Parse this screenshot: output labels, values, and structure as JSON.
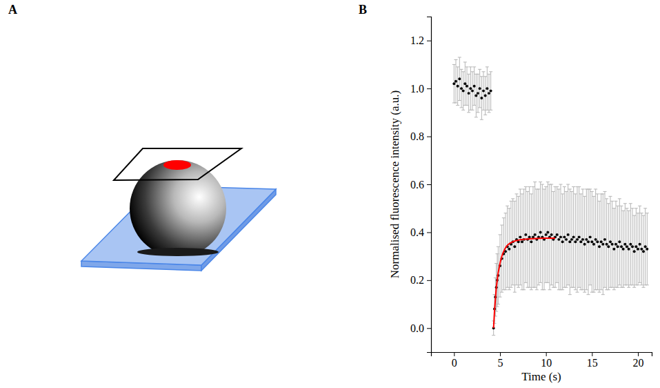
{
  "panel_labels": [
    "A",
    "B"
  ],
  "chart_data": {
    "type": "scatter",
    "x_label": "Time (s)",
    "y_label": "Normalised fluorescence intensity (a.u.)",
    "xlim": [
      -2.5,
      21.5
    ],
    "xticks": [
      0,
      5,
      10,
      15,
      20
    ],
    "ylim": [
      -0.1,
      1.3
    ],
    "yticks": [
      {
        "value": 0,
        "label": "0.0"
      },
      0.2,
      0.4,
      0.6,
      0.8,
      {
        "value": 1,
        "label": "1.0"
      },
      1.2
    ],
    "series": [
      {
        "type": "scatter",
        "color": "#000000",
        "marker": "circle",
        "x": [
          0,
          0.2,
          0.4,
          0.6,
          0.8,
          1.0,
          1.2,
          1.4,
          1.6,
          1.8,
          2.0,
          2.2,
          2.4,
          2.6,
          2.8,
          3.0,
          3.2,
          3.4,
          3.6,
          3.8,
          4.0,
          4.3,
          4.4,
          4.5,
          4.6,
          4.7,
          4.8,
          5.0,
          5.2,
          5.4,
          5.6,
          5.8,
          6.0,
          6.2,
          6.4,
          6.6,
          6.8,
          7.0,
          7.2,
          7.4,
          7.6,
          7.8,
          8.0,
          8.2,
          8.4,
          8.6,
          8.8,
          9.0,
          9.2,
          9.4,
          9.6,
          9.8,
          10.0,
          10.2,
          10.4,
          10.6,
          10.8,
          11.0,
          11.2,
          11.4,
          11.6,
          11.8,
          12.0,
          12.2,
          12.4,
          12.6,
          12.8,
          13.0,
          13.2,
          13.4,
          13.6,
          13.8,
          14.0,
          14.2,
          14.4,
          14.6,
          14.8,
          15.0,
          15.2,
          15.4,
          15.6,
          15.8,
          16.0,
          16.2,
          16.4,
          16.6,
          16.8,
          17.0,
          17.2,
          17.4,
          17.6,
          17.8,
          18.0,
          18.2,
          18.4,
          18.6,
          18.8,
          19.0,
          19.2,
          19.4,
          19.6,
          19.8,
          20.0,
          20.2,
          20.4,
          20.6,
          20.8,
          21.0
        ],
        "values": [
          1.02,
          1.03,
          1.01,
          1.04,
          1.0,
          0.99,
          1.02,
          1.01,
          0.98,
          1.0,
          0.99,
          1.01,
          0.97,
          0.98,
          1.0,
          0.96,
          0.99,
          0.97,
          1.0,
          0.98,
          0.99,
          0.0,
          0.08,
          0.13,
          0.17,
          0.2,
          0.22,
          0.26,
          0.29,
          0.31,
          0.32,
          0.34,
          0.33,
          0.35,
          0.36,
          0.34,
          0.37,
          0.36,
          0.38,
          0.36,
          0.37,
          0.39,
          0.37,
          0.38,
          0.36,
          0.38,
          0.39,
          0.37,
          0.38,
          0.4,
          0.38,
          0.37,
          0.39,
          0.4,
          0.38,
          0.39,
          0.37,
          0.38,
          0.39,
          0.37,
          0.38,
          0.36,
          0.38,
          0.37,
          0.39,
          0.36,
          0.37,
          0.38,
          0.36,
          0.37,
          0.38,
          0.36,
          0.37,
          0.35,
          0.37,
          0.36,
          0.38,
          0.36,
          0.35,
          0.37,
          0.36,
          0.34,
          0.36,
          0.35,
          0.37,
          0.35,
          0.34,
          0.36,
          0.35,
          0.33,
          0.35,
          0.34,
          0.36,
          0.34,
          0.33,
          0.35,
          0.34,
          0.33,
          0.35,
          0.34,
          0.32,
          0.34,
          0.33,
          0.35,
          0.33,
          0.32,
          0.34,
          0.33
        ],
        "errors": [
          0.08,
          0.09,
          0.08,
          0.09,
          0.08,
          0.08,
          0.09,
          0.08,
          0.08,
          0.09,
          0.08,
          0.08,
          0.09,
          0.08,
          0.08,
          0.09,
          0.08,
          0.08,
          0.09,
          0.08,
          0.08,
          0.03,
          0.06,
          0.08,
          0.1,
          0.11,
          0.12,
          0.13,
          0.14,
          0.15,
          0.16,
          0.17,
          0.17,
          0.18,
          0.18,
          0.19,
          0.19,
          0.19,
          0.2,
          0.2,
          0.21,
          0.2,
          0.2,
          0.21,
          0.2,
          0.21,
          0.22,
          0.21,
          0.2,
          0.21,
          0.22,
          0.21,
          0.2,
          0.21,
          0.22,
          0.21,
          0.2,
          0.21,
          0.2,
          0.21,
          0.22,
          0.2,
          0.21,
          0.2,
          0.21,
          0.22,
          0.2,
          0.21,
          0.2,
          0.22,
          0.21,
          0.2,
          0.21,
          0.2,
          0.21,
          0.22,
          0.2,
          0.21,
          0.2,
          0.21,
          0.2,
          0.19,
          0.2,
          0.21,
          0.2,
          0.19,
          0.18,
          0.19,
          0.18,
          0.17,
          0.18,
          0.17,
          0.18,
          0.17,
          0.16,
          0.17,
          0.16,
          0.16,
          0.17,
          0.16,
          0.15,
          0.16,
          0.15,
          0.16,
          0.15,
          0.15,
          0.16,
          0.15
        ]
      },
      {
        "type": "line",
        "color": "#ff0000",
        "line_style": "solid",
        "x": [
          4.3,
          4.4,
          4.5,
          4.6,
          4.7,
          4.8,
          4.9,
          5.0,
          5.2,
          5.4,
          5.6,
          5.8,
          6.0,
          6.5,
          7.0,
          7.5,
          8.0,
          9.0,
          10.0,
          11.0
        ],
        "values": [
          0.0,
          0.07,
          0.12,
          0.17,
          0.2,
          0.23,
          0.25,
          0.27,
          0.3,
          0.32,
          0.335,
          0.345,
          0.352,
          0.362,
          0.367,
          0.37,
          0.372,
          0.374,
          0.375,
          0.375
        ]
      }
    ]
  }
}
